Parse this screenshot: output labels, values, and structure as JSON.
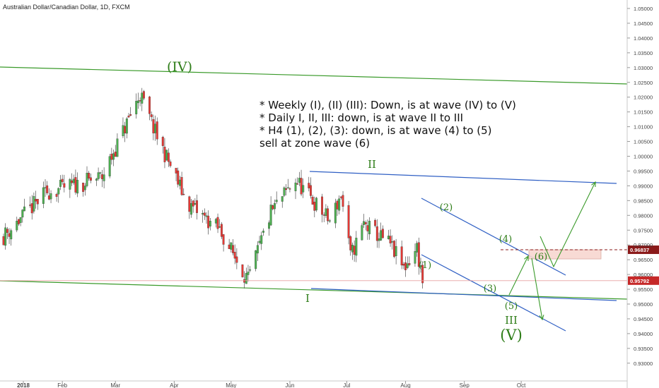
{
  "chart_data": {
    "type": "candlestick",
    "title": "Australian Dollar/Canadian Dollar, 1D, FXCM",
    "x_tick_labels": [
      "2018",
      "Feb",
      "Mar",
      "Apr",
      "May",
      "Jun",
      "Jul",
      "Aug",
      "Sep",
      "Oct"
    ],
    "ylim": [
      0.9275,
      1.0525
    ],
    "y_ticks": [
      "1.05000",
      "1.04500",
      "1.04000",
      "1.03500",
      "1.03000",
      "1.02500",
      "1.02000",
      "1.01500",
      "1.01000",
      "1.00500",
      "1.00000",
      "0.99500",
      "0.99000",
      "0.98500",
      "0.98000",
      "0.97500",
      "0.97000",
      "0.96500",
      "0.96000",
      "0.95500",
      "0.95000",
      "0.94500",
      "0.94000",
      "0.93500",
      "0.93000"
    ],
    "last_price": "0.95792",
    "sell_level": "0.96837",
    "colors": {
      "up": "#4caf50",
      "down": "#e53935",
      "trend": "#3a9a2a",
      "channel": "#2f5fc4",
      "zone": "#f8d7d0",
      "wave_label": "#2e7d18",
      "price_box": "#c62828"
    },
    "wave_labels": [
      "(IV)",
      "II",
      "I",
      "(2)",
      "(4)",
      "(1)",
      "(3)",
      "(5)",
      "III",
      "(V)",
      "(6)"
    ],
    "notes": [
      "* Weekly (I), (II) (III): Down, is at wave (IV) to (V)",
      "* Daily I, II, III: down, is at wave II to III",
      "* H4 (1), (2), (3): down, is at wave (4) to (5)",
      "sell at zone wave (6)"
    ],
    "key_points": [
      {
        "date": "2018-01-01",
        "price": 0.973
      },
      {
        "date": "2018-01-24",
        "price": 0.988
      },
      {
        "date": "2018-02-07",
        "price": 0.99
      },
      {
        "date": "2018-02-22",
        "price": 0.993
      },
      {
        "date": "2018-03-14",
        "price": 1.021
      },
      {
        "date": "2018-03-22",
        "price": 1.008
      },
      {
        "date": "2018-04-08",
        "price": 0.984
      },
      {
        "date": "2018-04-25",
        "price": 0.975
      },
      {
        "date": "2018-05-10",
        "price": 0.958
      },
      {
        "date": "2018-05-22",
        "price": 0.981
      },
      {
        "date": "2018-06-04",
        "price": 0.992
      },
      {
        "date": "2018-06-22",
        "price": 0.978
      },
      {
        "date": "2018-06-28",
        "price": 0.987
      },
      {
        "date": "2018-07-03",
        "price": 0.966
      },
      {
        "date": "2018-07-10",
        "price": 0.977
      },
      {
        "date": "2018-07-24",
        "price": 0.97
      },
      {
        "date": "2018-07-31",
        "price": 0.962
      },
      {
        "date": "2018-08-07",
        "price": 0.969
      },
      {
        "date": "2018-08-10",
        "price": 0.958
      }
    ]
  }
}
